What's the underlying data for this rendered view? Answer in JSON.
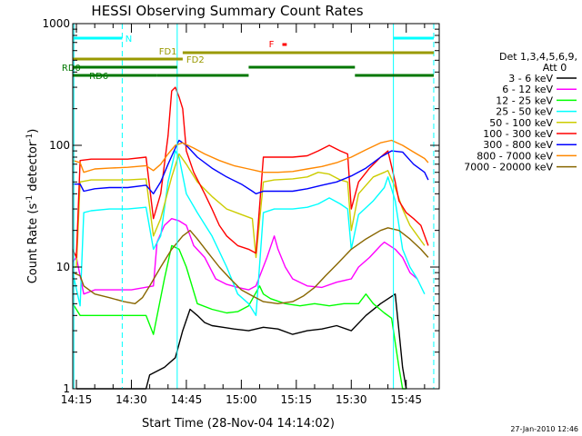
{
  "chart_data": {
    "type": "line",
    "title": "HESSI Observing Summary Count Rates",
    "xlabel": "Start Time (28-Nov-04 14:14:02)",
    "ylabel": "Count Rate (s⁻¹ detector⁻¹)",
    "ylabel_base": "Count Rate (s",
    "ylabel_sup1": "-1",
    "ylabel_mid": " detector",
    "ylabel_sup2": "-1",
    "ylabel_end": ")",
    "y_scale": "log",
    "ylim": [
      1,
      1000
    ],
    "xlim_minutes": [
      0,
      100
    ],
    "x_ticks": [
      {
        "t": 1,
        "label": "14:15"
      },
      {
        "t": 16,
        "label": "14:30"
      },
      {
        "t": 31,
        "label": "14:45"
      },
      {
        "t": 46,
        "label": "15:00"
      },
      {
        "t": 61,
        "label": "15:15"
      },
      {
        "t": 76,
        "label": "15:30"
      },
      {
        "t": 91,
        "label": "15:45"
      }
    ],
    "y_ticks": [
      {
        "v": 1,
        "label": "1"
      },
      {
        "v": 10,
        "label": "10"
      },
      {
        "v": 100,
        "label": "100"
      },
      {
        "v": 1000,
        "label": "1000"
      }
    ],
    "legend_header": [
      "Det 1,3,4,5,6,9,",
      "Att 0"
    ],
    "series": [
      {
        "name": "3 - 6 keV",
        "color": "#000000",
        "values": [
          [
            1,
            1
          ],
          [
            20,
            1
          ],
          [
            21,
            1.3
          ],
          [
            25,
            1.5
          ],
          [
            28,
            1.8
          ],
          [
            30,
            3
          ],
          [
            32,
            4.5
          ],
          [
            34,
            4
          ],
          [
            36,
            3.5
          ],
          [
            38,
            3.3
          ],
          [
            41,
            3.2
          ],
          [
            44,
            3.1
          ],
          [
            48,
            3.0
          ],
          [
            52,
            3.2
          ],
          [
            56,
            3.1
          ],
          [
            60,
            2.8
          ],
          [
            64,
            3.0
          ],
          [
            68,
            3.1
          ],
          [
            72,
            3.3
          ],
          [
            76,
            3.0
          ],
          [
            80,
            4
          ],
          [
            84,
            5
          ],
          [
            88,
            6
          ],
          [
            89,
            3
          ],
          [
            90,
            1.5
          ],
          [
            91,
            1
          ]
        ]
      },
      {
        "name": "6 - 12 keV",
        "color": "#ff00ff",
        "values": [
          [
            0,
            11
          ],
          [
            1,
            12
          ],
          [
            3,
            6
          ],
          [
            6,
            6.5
          ],
          [
            10,
            6.5
          ],
          [
            16,
            6.5
          ],
          [
            22,
            7
          ],
          [
            23,
            16
          ],
          [
            25,
            22
          ],
          [
            27,
            25
          ],
          [
            29,
            24
          ],
          [
            31,
            22
          ],
          [
            33,
            15
          ],
          [
            36,
            12
          ],
          [
            39,
            8
          ],
          [
            42,
            7.2
          ],
          [
            45,
            6.8
          ],
          [
            48,
            6.5
          ],
          [
            50,
            7
          ],
          [
            53,
            12
          ],
          [
            55,
            18
          ],
          [
            56,
            14
          ],
          [
            58,
            10
          ],
          [
            60,
            8
          ],
          [
            64,
            7
          ],
          [
            68,
            6.8
          ],
          [
            72,
            7.5
          ],
          [
            76,
            8
          ],
          [
            78,
            10
          ],
          [
            81,
            12
          ],
          [
            84,
            15
          ],
          [
            85,
            16
          ],
          [
            88,
            14
          ],
          [
            90,
            12
          ],
          [
            92,
            9
          ],
          [
            94,
            8
          ]
        ]
      },
      {
        "name": "12 - 25 keV",
        "color": "#00ff00",
        "values": [
          [
            0,
            5
          ],
          [
            2,
            4
          ],
          [
            10,
            4
          ],
          [
            20,
            4
          ],
          [
            22,
            2.8
          ],
          [
            25,
            8
          ],
          [
            27,
            15
          ],
          [
            29,
            14
          ],
          [
            31,
            10
          ],
          [
            34,
            5
          ],
          [
            38,
            4.5
          ],
          [
            42,
            4.2
          ],
          [
            45,
            4.3
          ],
          [
            48,
            4.8
          ],
          [
            51,
            7
          ],
          [
            52,
            6
          ],
          [
            54,
            5.5
          ],
          [
            58,
            5
          ],
          [
            62,
            4.8
          ],
          [
            66,
            5
          ],
          [
            70,
            4.8
          ],
          [
            74,
            5
          ],
          [
            78,
            5
          ],
          [
            80,
            6
          ],
          [
            82,
            5
          ],
          [
            85,
            4.2
          ],
          [
            87,
            3.8
          ],
          [
            89,
            1.5
          ],
          [
            90,
            1
          ],
          [
            91,
            1
          ]
        ]
      },
      {
        "name": "25 - 50 keV",
        "color": "#00ffff",
        "values": [
          [
            0,
            9
          ],
          [
            2,
            4.8
          ],
          [
            3,
            28
          ],
          [
            5,
            29
          ],
          [
            10,
            30
          ],
          [
            15,
            30
          ],
          [
            20,
            31
          ],
          [
            22,
            14
          ],
          [
            24,
            18
          ],
          [
            26,
            50
          ],
          [
            28,
            90
          ],
          [
            29,
            80
          ],
          [
            31,
            40
          ],
          [
            34,
            28
          ],
          [
            38,
            18
          ],
          [
            42,
            10
          ],
          [
            45,
            6
          ],
          [
            48,
            5
          ],
          [
            50,
            4
          ],
          [
            52,
            28
          ],
          [
            55,
            30
          ],
          [
            60,
            30
          ],
          [
            64,
            31
          ],
          [
            67,
            33
          ],
          [
            70,
            37
          ],
          [
            73,
            33
          ],
          [
            75,
            30
          ],
          [
            76,
            14
          ],
          [
            78,
            27
          ],
          [
            82,
            35
          ],
          [
            85,
            45
          ],
          [
            86,
            55
          ],
          [
            88,
            35
          ],
          [
            90,
            14
          ],
          [
            92,
            10
          ],
          [
            94,
            8
          ],
          [
            96,
            6
          ]
        ]
      },
      {
        "name": "50 - 100 keV",
        "color": "#cccc00",
        "values": [
          [
            0,
            10
          ],
          [
            1,
            10
          ],
          [
            2,
            50
          ],
          [
            5,
            52
          ],
          [
            10,
            52
          ],
          [
            15,
            52
          ],
          [
            20,
            53
          ],
          [
            22,
            18
          ],
          [
            24,
            25
          ],
          [
            27,
            55
          ],
          [
            29,
            85
          ],
          [
            31,
            70
          ],
          [
            34,
            50
          ],
          [
            38,
            38
          ],
          [
            42,
            30
          ],
          [
            46,
            27
          ],
          [
            49,
            25
          ],
          [
            50,
            12
          ],
          [
            52,
            50
          ],
          [
            55,
            52
          ],
          [
            60,
            53
          ],
          [
            64,
            55
          ],
          [
            67,
            60
          ],
          [
            70,
            58
          ],
          [
            73,
            52
          ],
          [
            75,
            50
          ],
          [
            76,
            20
          ],
          [
            78,
            40
          ],
          [
            82,
            55
          ],
          [
            85,
            60
          ],
          [
            86,
            62
          ],
          [
            88,
            45
          ],
          [
            90,
            30
          ],
          [
            92,
            22
          ],
          [
            96,
            15
          ]
        ]
      },
      {
        "name": "100 - 300 keV",
        "color": "#ff0000",
        "values": [
          [
            0,
            14
          ],
          [
            1,
            12
          ],
          [
            2,
            75
          ],
          [
            5,
            77
          ],
          [
            10,
            77
          ],
          [
            15,
            77
          ],
          [
            20,
            80
          ],
          [
            22,
            25
          ],
          [
            24,
            40
          ],
          [
            26,
            120
          ],
          [
            27,
            280
          ],
          [
            28,
            300
          ],
          [
            29,
            250
          ],
          [
            30,
            200
          ],
          [
            31,
            90
          ],
          [
            33,
            60
          ],
          [
            36,
            40
          ],
          [
            38,
            30
          ],
          [
            40,
            22
          ],
          [
            42,
            18
          ],
          [
            45,
            15
          ],
          [
            48,
            14
          ],
          [
            50,
            13
          ],
          [
            52,
            80
          ],
          [
            55,
            80
          ],
          [
            60,
            80
          ],
          [
            64,
            82
          ],
          [
            67,
            90
          ],
          [
            70,
            100
          ],
          [
            73,
            90
          ],
          [
            75,
            85
          ],
          [
            76,
            30
          ],
          [
            78,
            50
          ],
          [
            81,
            65
          ],
          [
            84,
            80
          ],
          [
            86,
            90
          ],
          [
            88,
            50
          ],
          [
            89,
            35
          ],
          [
            91,
            28
          ],
          [
            93,
            25
          ],
          [
            95,
            22
          ],
          [
            97,
            15
          ]
        ]
      },
      {
        "name": "300 - 800 keV",
        "color": "#0000ff",
        "values": [
          [
            0,
            48
          ],
          [
            2,
            48
          ],
          [
            3,
            42
          ],
          [
            6,
            44
          ],
          [
            10,
            45
          ],
          [
            15,
            45
          ],
          [
            20,
            47
          ],
          [
            22,
            40
          ],
          [
            24,
            50
          ],
          [
            26,
            70
          ],
          [
            28,
            95
          ],
          [
            29,
            110
          ],
          [
            31,
            100
          ],
          [
            34,
            80
          ],
          [
            38,
            65
          ],
          [
            42,
            55
          ],
          [
            46,
            48
          ],
          [
            49,
            42
          ],
          [
            50,
            40
          ],
          [
            52,
            42
          ],
          [
            56,
            42
          ],
          [
            60,
            42
          ],
          [
            64,
            44
          ],
          [
            68,
            47
          ],
          [
            72,
            50
          ],
          [
            76,
            56
          ],
          [
            80,
            65
          ],
          [
            84,
            80
          ],
          [
            87,
            90
          ],
          [
            90,
            88
          ],
          [
            93,
            70
          ],
          [
            96,
            60
          ],
          [
            97,
            52
          ]
        ]
      },
      {
        "name": "800 - 7000 keV",
        "color": "#ff8800",
        "values": [
          [
            0,
            75
          ],
          [
            2,
            72
          ],
          [
            3,
            60
          ],
          [
            6,
            64
          ],
          [
            10,
            65
          ],
          [
            15,
            66
          ],
          [
            20,
            68
          ],
          [
            22,
            62
          ],
          [
            24,
            70
          ],
          [
            26,
            85
          ],
          [
            28,
            100
          ],
          [
            30,
            105
          ],
          [
            33,
            95
          ],
          [
            36,
            85
          ],
          [
            40,
            75
          ],
          [
            44,
            68
          ],
          [
            48,
            64
          ],
          [
            50,
            62
          ],
          [
            52,
            60
          ],
          [
            56,
            60
          ],
          [
            60,
            61
          ],
          [
            64,
            64
          ],
          [
            68,
            67
          ],
          [
            72,
            72
          ],
          [
            76,
            80
          ],
          [
            80,
            92
          ],
          [
            84,
            105
          ],
          [
            87,
            110
          ],
          [
            90,
            100
          ],
          [
            93,
            88
          ],
          [
            96,
            78
          ],
          [
            97,
            72
          ]
        ]
      },
      {
        "name": "7000 - 20000 keV",
        "color": "#886600",
        "values": [
          [
            0,
            9
          ],
          [
            2,
            8.5
          ],
          [
            3,
            7
          ],
          [
            6,
            6
          ],
          [
            10,
            5.6
          ],
          [
            14,
            5.2
          ],
          [
            17,
            5
          ],
          [
            19,
            5.6
          ],
          [
            21,
            7
          ],
          [
            24,
            10
          ],
          [
            27,
            14
          ],
          [
            30,
            18
          ],
          [
            32,
            20
          ],
          [
            34,
            17
          ],
          [
            37,
            13
          ],
          [
            40,
            10
          ],
          [
            43,
            8
          ],
          [
            46,
            6.5
          ],
          [
            49,
            5.8
          ],
          [
            52,
            5.2
          ],
          [
            56,
            5
          ],
          [
            60,
            5.2
          ],
          [
            63,
            5.8
          ],
          [
            66,
            6.8
          ],
          [
            69,
            8.5
          ],
          [
            72,
            10.5
          ],
          [
            76,
            14
          ],
          [
            80,
            17
          ],
          [
            84,
            20
          ],
          [
            86,
            21
          ],
          [
            89,
            20
          ],
          [
            92,
            17
          ],
          [
            95,
            14
          ],
          [
            97,
            12
          ]
        ]
      }
    ],
    "state_bars": {
      "N": {
        "label": "N",
        "color": "#00ffff"
      },
      "F": {
        "label": "F",
        "color": "#ff0000"
      },
      "FD1": {
        "label": "FD1",
        "color": "#999900"
      },
      "FD2": {
        "label": "FD2",
        "color": "#999900"
      },
      "RD0": {
        "label": "RD0",
        "color": "#007700"
      },
      "RD6": {
        "label": "RD6",
        "color": "#007700"
      }
    },
    "grid": false,
    "legend_position": "right"
  },
  "footer": {
    "date": "27-Jan-2010 12:46"
  }
}
